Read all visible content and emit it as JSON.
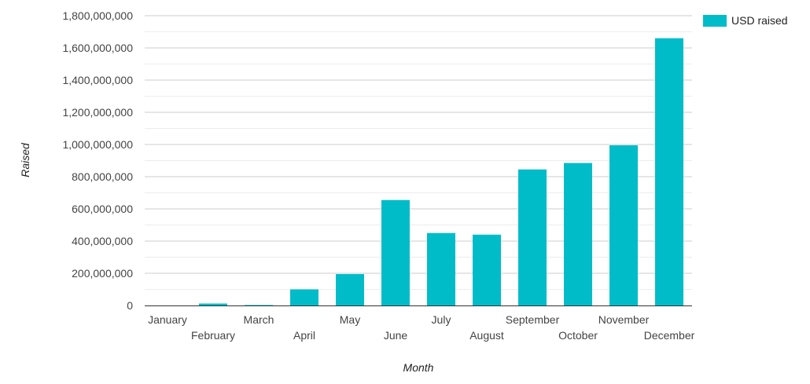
{
  "chart_data": {
    "type": "bar",
    "categories": [
      "January",
      "February",
      "March",
      "April",
      "May",
      "June",
      "July",
      "August",
      "September",
      "October",
      "November",
      "December"
    ],
    "series": [
      {
        "name": "USD raised",
        "color": "#00bcc9",
        "values": [
          0,
          12000000,
          3000000,
          100000000,
          195000000,
          655000000,
          450000000,
          440000000,
          845000000,
          885000000,
          995000000,
          1660000000
        ]
      }
    ],
    "ylim": [
      0,
      1800000000
    ],
    "yticks": [
      0,
      200000000,
      400000000,
      600000000,
      800000000,
      1000000000,
      1200000000,
      1400000000,
      1600000000,
      1800000000
    ],
    "ytick_labels": [
      "0",
      "200,000,000",
      "400,000,000",
      "600,000,000",
      "800,000,000",
      "1,000,000,000",
      "1,200,000,000",
      "1,400,000,000",
      "1,600,000,000",
      "1,800,000,000"
    ],
    "xlabel": "Month",
    "ylabel": "Raised",
    "legend_position": "top-right",
    "grid": true
  }
}
